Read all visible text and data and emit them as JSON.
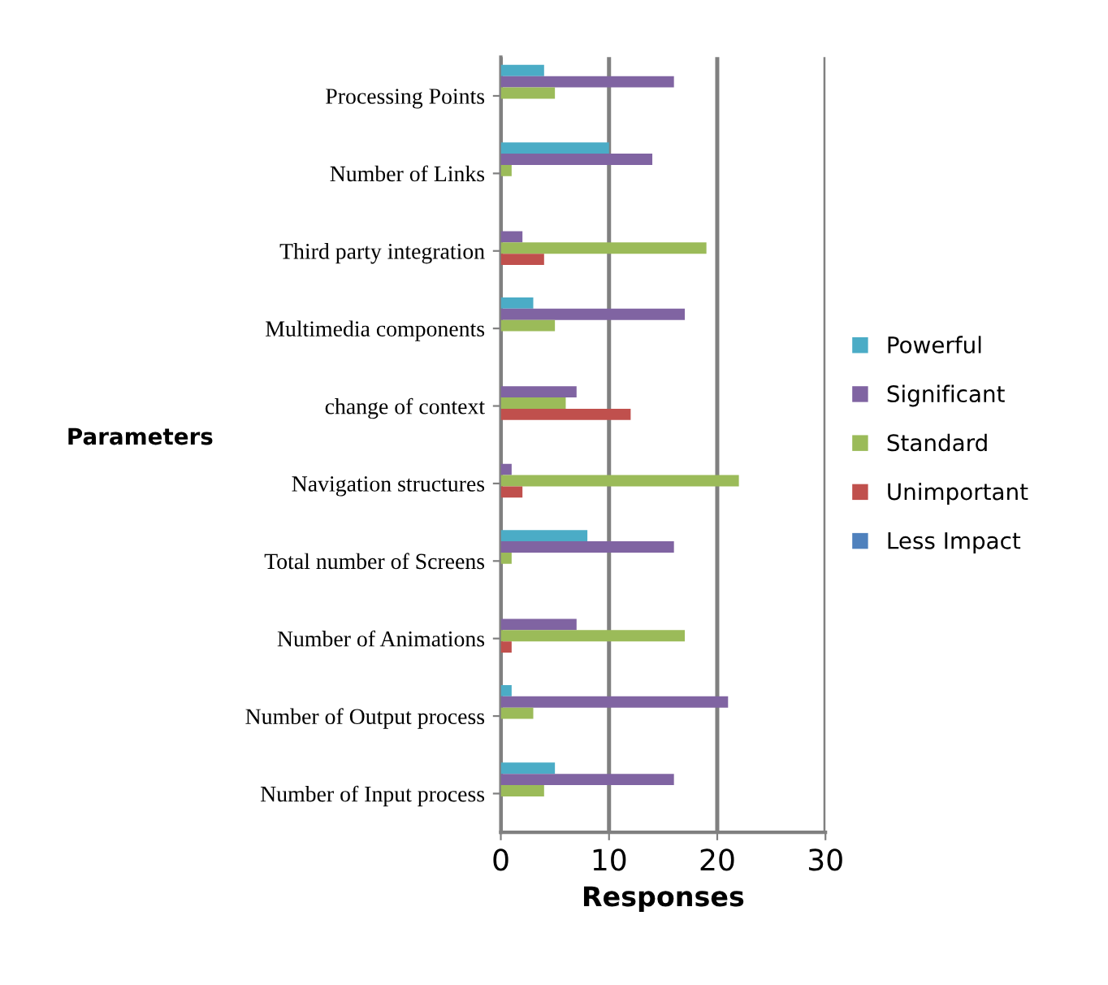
{
  "chart_data": {
    "type": "bar",
    "orientation": "horizontal",
    "xlabel": "Responses",
    "ylabel": "Parameters",
    "categories": [
      "Processing Points",
      "Number of Links",
      "Third party integration",
      "Multimedia components",
      "change of context",
      "Navigation structures",
      "Total number of Screens",
      "Number of Animations",
      "Number of Output process",
      "Number of Input process"
    ],
    "series": [
      {
        "name": "Powerful",
        "color": "#4bacc6",
        "values": [
          4,
          10,
          0,
          3,
          0,
          0,
          8,
          0,
          1,
          5
        ]
      },
      {
        "name": "Significant",
        "color": "#8064a2",
        "values": [
          16,
          14,
          2,
          17,
          7,
          1,
          16,
          7,
          21,
          16
        ]
      },
      {
        "name": "Standard",
        "color": "#9bbb59",
        "values": [
          5,
          1,
          19,
          5,
          6,
          22,
          1,
          17,
          3,
          4
        ]
      },
      {
        "name": "Unimportant",
        "color": "#c0504d",
        "values": [
          0,
          0,
          4,
          0,
          12,
          2,
          0,
          1,
          0,
          0
        ]
      },
      {
        "name": "Less Impact",
        "color": "#4f81bd",
        "values": [
          0,
          0,
          0,
          0,
          0,
          0,
          0,
          0,
          0,
          0
        ]
      }
    ],
    "xlim": [
      0,
      30
    ],
    "xticks": [
      0,
      10,
      20,
      30
    ],
    "grid": "x",
    "legend": "right"
  }
}
